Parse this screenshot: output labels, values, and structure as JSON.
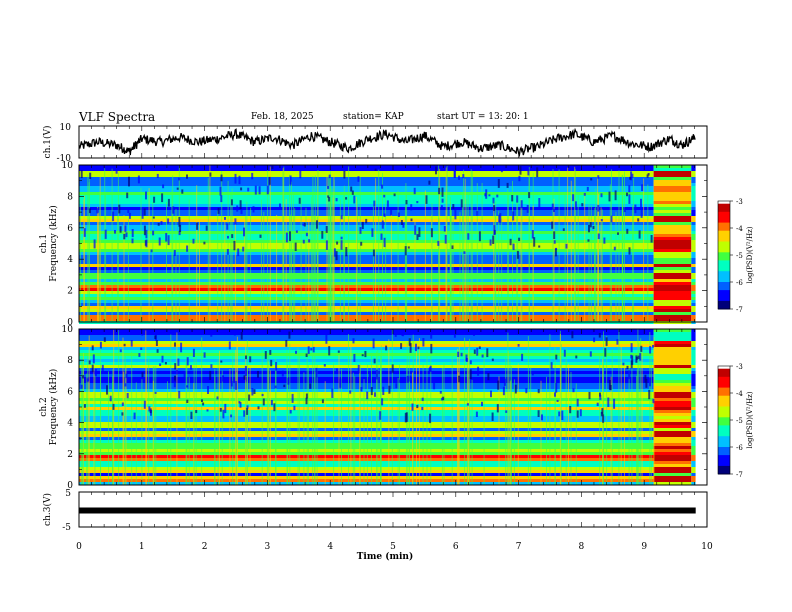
{
  "header": {
    "title": "VLF Spectra",
    "date": "Feb. 18, 2025",
    "station": "station= KAP",
    "start_ut": "start  UT =   13: 20: 1"
  },
  "chart_data": [
    {
      "type": "line",
      "name": "ch1-waveform",
      "ylabel": "ch.1(V)",
      "ylim": [
        -10,
        10
      ],
      "yticks": [
        "10",
        "-10"
      ],
      "xlim": [
        0,
        10
      ],
      "note_x_extent": 9.82,
      "x": [
        0,
        0.3,
        0.6,
        0.8,
        1.0,
        1.3,
        1.6,
        1.9,
        2.2,
        2.5,
        2.8,
        3.1,
        3.4,
        3.7,
        4.0,
        4.3,
        4.6,
        4.9,
        5.2,
        5.5,
        5.8,
        6.1,
        6.4,
        6.7,
        7.0,
        7.3,
        7.6,
        7.9,
        8.2,
        8.5,
        8.8,
        9.1,
        9.4,
        9.6,
        9.82
      ],
      "y": [
        -3,
        0,
        -2,
        -6,
        2,
        0,
        3,
        0,
        2,
        5,
        0,
        3,
        -2,
        4,
        0,
        -4,
        2,
        5,
        0,
        4,
        -3,
        0,
        -4,
        -2,
        -6,
        -3,
        2,
        5,
        0,
        4,
        -1,
        -3,
        2,
        -2,
        3
      ]
    },
    {
      "type": "heatmap",
      "name": "ch1-spectrogram",
      "ylabel": "ch.1\nFrequency (kHz)",
      "xlim": [
        0,
        10
      ],
      "ylim": [
        0,
        10
      ],
      "yticks": [
        0,
        2,
        4,
        6,
        8,
        10
      ],
      "colorbar": {
        "label": "log(PSD)(V²/Hz)",
        "range": [
          -7,
          -3
        ],
        "ticks": [
          "-3",
          "-4",
          "-5",
          "-6",
          "-7"
        ]
      },
      "bands": [
        {
          "f": 0.4,
          "level": -4
        },
        {
          "f": 1.0,
          "level": -4.5
        },
        {
          "f": 1.6,
          "level": -5
        },
        {
          "f": 2.2,
          "level": -3.8
        },
        {
          "f": 3.0,
          "level": -4.8
        },
        {
          "f": 3.7,
          "level": -4.2
        },
        {
          "f": 4.8,
          "level": -4.6
        },
        {
          "f": 5.2,
          "level": -4.6
        },
        {
          "f": 6.6,
          "level": -4.4
        },
        {
          "f": 9.6,
          "level": -4.6
        }
      ],
      "burst_x": [
        9.15,
        9.75
      ]
    },
    {
      "type": "heatmap",
      "name": "ch2-spectrogram",
      "ylabel": "ch.2\nFrequency (kHz)",
      "xlim": [
        0,
        10
      ],
      "ylim": [
        0,
        10
      ],
      "yticks": [
        0,
        2,
        4,
        6,
        8,
        10
      ],
      "colorbar": {
        "label": "log(PSD)(V²/Hz)",
        "range": [
          -7,
          -3
        ],
        "ticks": [
          "-3",
          "-4",
          "-5",
          "-6",
          "-7"
        ]
      },
      "bands": [
        {
          "f": 0.4,
          "level": -4
        },
        {
          "f": 1.0,
          "level": -4.5
        },
        {
          "f": 1.9,
          "level": -3.8
        },
        {
          "f": 3.3,
          "level": -4.2
        },
        {
          "f": 4.0,
          "level": -4.6
        },
        {
          "f": 5.0,
          "level": -4.4
        },
        {
          "f": 5.9,
          "level": -4.6
        },
        {
          "f": 7.7,
          "level": -4.5
        },
        {
          "f": 9.2,
          "level": -4.6
        }
      ],
      "burst_x": [
        9.15,
        9.75
      ]
    },
    {
      "type": "line",
      "name": "ch3-waveform",
      "ylabel": "ch.3(V)",
      "ylim": [
        -5,
        5
      ],
      "yticks": [
        "5",
        "-5"
      ],
      "xlim": [
        0,
        10
      ],
      "x": [
        0,
        9.82
      ],
      "y": [
        0,
        0
      ],
      "xlabel": "Time  (min)",
      "xticks": [
        "0",
        "1",
        "2",
        "3",
        "4",
        "5",
        "6",
        "7",
        "8",
        "9",
        "10"
      ]
    }
  ],
  "colormap": [
    "#00007a",
    "#0000ff",
    "#0060ff",
    "#00c0ff",
    "#00ffc0",
    "#40ff40",
    "#c0ff00",
    "#ffd000",
    "#ff7000",
    "#ff0000",
    "#c00000",
    "#ffffff"
  ]
}
